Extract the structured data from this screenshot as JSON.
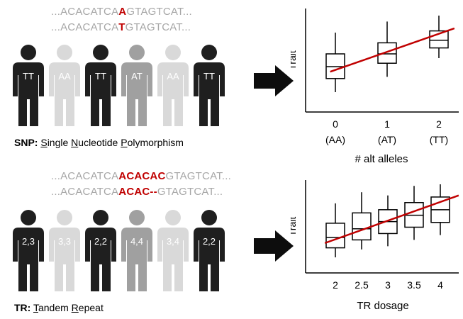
{
  "snp": {
    "seq1": {
      "pre": "...ACACATCA",
      "var": "A",
      "post": "GTAGTCAT..."
    },
    "seq2": {
      "pre": "...ACACATCA",
      "var": "T",
      "post": "GTAGTCAT..."
    },
    "people": [
      {
        "label": "TT",
        "color": "#1f1f1f"
      },
      {
        "label": "AA",
        "color": "#d9d9d9"
      },
      {
        "label": "TT",
        "color": "#1f1f1f"
      },
      {
        "label": "AT",
        "color": "#a0a0a0"
      },
      {
        "label": "AA",
        "color": "#d9d9d9"
      },
      {
        "label": "TT",
        "color": "#1f1f1f"
      }
    ],
    "caption": {
      "abbr": "SNP:",
      "w1f": "S",
      "w1r": "ingle ",
      "w2f": "N",
      "w2r": "ucleotide ",
      "w3f": "P",
      "w3r": "olymorphism"
    }
  },
  "tr": {
    "seq1": {
      "pre": "...ACACATCA",
      "var": "ACACAC",
      "post": "GTAGTCAT..."
    },
    "seq2": {
      "pre": "...ACACATCA",
      "var": "ACAC--",
      "post": "GTAGTCAT..."
    },
    "people": [
      {
        "label": "2,3",
        "color": "#1f1f1f"
      },
      {
        "label": "3,3",
        "color": "#d9d9d9"
      },
      {
        "label": "2,2",
        "color": "#1f1f1f"
      },
      {
        "label": "4,4",
        "color": "#a0a0a0"
      },
      {
        "label": "3,4",
        "color": "#d9d9d9"
      },
      {
        "label": "2,2",
        "color": "#1f1f1f"
      }
    ],
    "caption": {
      "abbr": "TR:",
      "w1f": "T",
      "w1r": "andem ",
      "w2f": "R",
      "w2r": "epeat"
    }
  },
  "colors": {
    "accent_red": "#c00000",
    "dark": "#1f1f1f",
    "mid": "#a0a0a0",
    "light": "#d9d9d9"
  },
  "chart_data": [
    {
      "type": "box",
      "ylabel": "Trait",
      "xlabel": "# alt alleles",
      "categories": [
        "0",
        "1",
        "2"
      ],
      "category_sublabels": [
        "(AA)",
        "(AT)",
        "(TT)"
      ],
      "boxes": [
        {
          "min": 0.1,
          "q1": 0.26,
          "median": 0.4,
          "q3": 0.55,
          "max": 0.8
        },
        {
          "min": 0.28,
          "q1": 0.44,
          "median": 0.55,
          "q3": 0.68,
          "max": 0.93
        },
        {
          "min": 0.5,
          "q1": 0.62,
          "median": 0.71,
          "q3": 0.82,
          "max": 1.0
        }
      ],
      "trend": {
        "color": "#c00000",
        "from": [
          -0.1,
          0.34
        ],
        "to": [
          2.3,
          0.85
        ]
      }
    },
    {
      "type": "box",
      "ylabel": "Trait",
      "xlabel": "TR dosage",
      "categories": [
        "2",
        "2.5",
        "3",
        "3.5",
        "4"
      ],
      "boxes": [
        {
          "min": 0.08,
          "q1": 0.2,
          "median": 0.33,
          "q3": 0.51,
          "max": 0.76
        },
        {
          "min": 0.18,
          "q1": 0.3,
          "median": 0.44,
          "q3": 0.64,
          "max": 0.9
        },
        {
          "min": 0.22,
          "q1": 0.38,
          "median": 0.53,
          "q3": 0.68,
          "max": 0.86
        },
        {
          "min": 0.3,
          "q1": 0.46,
          "median": 0.61,
          "q3": 0.77,
          "max": 0.98
        },
        {
          "min": 0.36,
          "q1": 0.52,
          "median": 0.68,
          "q3": 0.84,
          "max": 1.0
        }
      ],
      "trend": {
        "color": "#c00000",
        "from": [
          1.8,
          0.26
        ],
        "to": [
          4.35,
          0.86
        ]
      }
    }
  ]
}
